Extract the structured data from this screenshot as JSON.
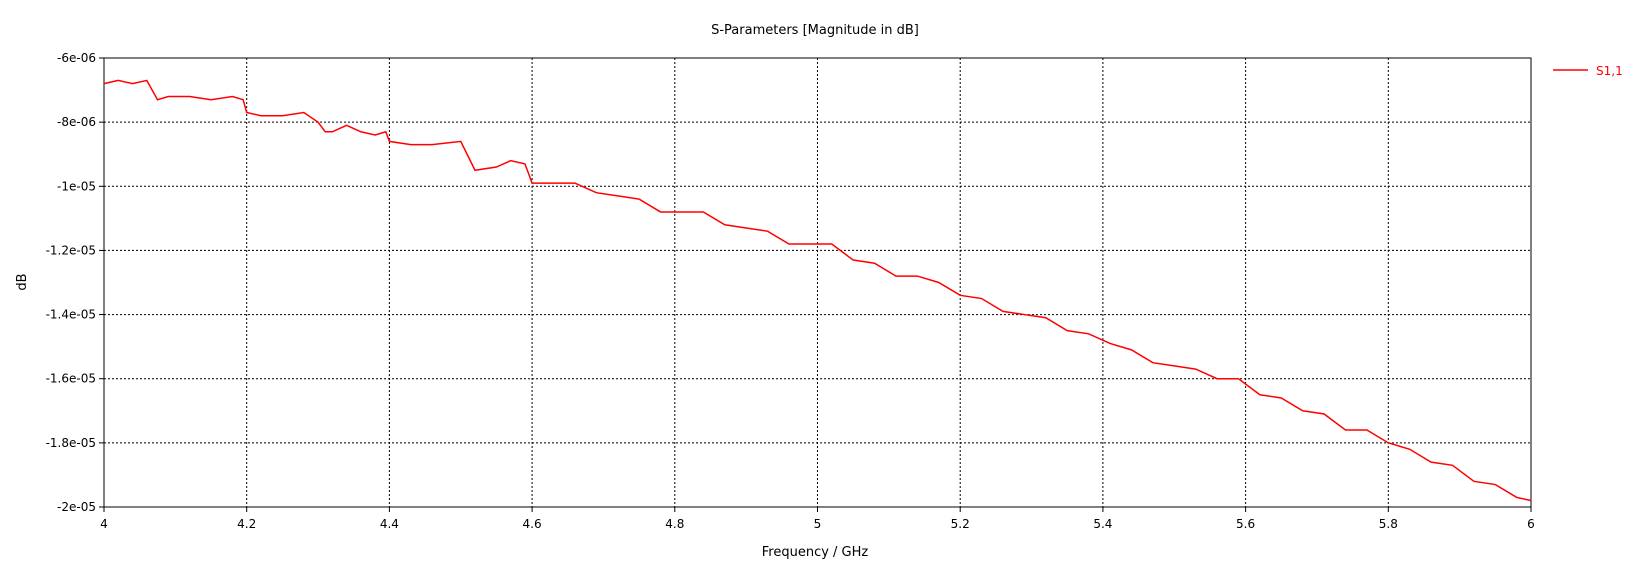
{
  "chart_data": {
    "type": "line",
    "title": "S-Parameters [Magnitude in dB]",
    "xlabel": "Frequency / GHz",
    "ylabel": "dB",
    "xlim": [
      4,
      6
    ],
    "ylim": [
      -2e-05,
      -6e-06
    ],
    "x_ticks": [
      4,
      4.2,
      4.4,
      4.6,
      4.8,
      5,
      5.2,
      5.4,
      5.6,
      5.8,
      6
    ],
    "x_tick_labels": [
      "4",
      "4.2",
      "4.4",
      "4.6",
      "4.8",
      "5",
      "5.2",
      "5.4",
      "5.6",
      "5.8",
      "6"
    ],
    "y_ticks": [
      -6e-06,
      -8e-06,
      -1e-05,
      -1.2e-05,
      -1.4e-05,
      -1.6e-05,
      -1.8e-05,
      -2e-05
    ],
    "y_tick_labels": [
      "-6e-06",
      "-8e-06",
      "-1e-05",
      "-1.2e-05",
      "-1.4e-05",
      "-1.6e-05",
      "-1.8e-05",
      "-2e-05"
    ],
    "grid": true,
    "legend_position": "right",
    "color": "#ff0000",
    "series": [
      {
        "name": "S1,1",
        "x": [
          4.0,
          4.02,
          4.04,
          4.06,
          4.075,
          4.09,
          4.12,
          4.15,
          4.18,
          4.195,
          4.2,
          4.22,
          4.25,
          4.28,
          4.3,
          4.31,
          4.32,
          4.34,
          4.36,
          4.38,
          4.395,
          4.4,
          4.43,
          4.46,
          4.5,
          4.52,
          4.55,
          4.57,
          4.59,
          4.6,
          4.63,
          4.66,
          4.69,
          4.72,
          4.75,
          4.78,
          4.81,
          4.84,
          4.87,
          4.9,
          4.93,
          4.96,
          4.99,
          5.02,
          5.05,
          5.08,
          5.11,
          5.14,
          5.17,
          5.2,
          5.23,
          5.26,
          5.29,
          5.32,
          5.35,
          5.38,
          5.41,
          5.44,
          5.47,
          5.5,
          5.53,
          5.56,
          5.59,
          5.62,
          5.65,
          5.68,
          5.71,
          5.74,
          5.77,
          5.8,
          5.83,
          5.86,
          5.89,
          5.92,
          5.95,
          5.98,
          6.0
        ],
        "y": [
          -6.8e-06,
          -6.7e-06,
          -6.8e-06,
          -6.7e-06,
          -7.3e-06,
          -7.2e-06,
          -7.2e-06,
          -7.3e-06,
          -7.2e-06,
          -7.3e-06,
          -7.7e-06,
          -7.8e-06,
          -7.8e-06,
          -7.7e-06,
          -8e-06,
          -8.3e-06,
          -8.3e-06,
          -8.1e-06,
          -8.3e-06,
          -8.4e-06,
          -8.3e-06,
          -8.6e-06,
          -8.7e-06,
          -8.7e-06,
          -8.6e-06,
          -9.5e-06,
          -9.4e-06,
          -9.2e-06,
          -9.3e-06,
          -9.9e-06,
          -9.9e-06,
          -9.9e-06,
          -1.02e-05,
          -1.03e-05,
          -1.04e-05,
          -1.08e-05,
          -1.08e-05,
          -1.08e-05,
          -1.12e-05,
          -1.13e-05,
          -1.14e-05,
          -1.18e-05,
          -1.18e-05,
          -1.18e-05,
          -1.23e-05,
          -1.24e-05,
          -1.28e-05,
          -1.28e-05,
          -1.3e-05,
          -1.34e-05,
          -1.35e-05,
          -1.39e-05,
          -1.4e-05,
          -1.41e-05,
          -1.45e-05,
          -1.46e-05,
          -1.49e-05,
          -1.51e-05,
          -1.55e-05,
          -1.56e-05,
          -1.57e-05,
          -1.6e-05,
          -1.6e-05,
          -1.65e-05,
          -1.66e-05,
          -1.7e-05,
          -1.71e-05,
          -1.76e-05,
          -1.76e-05,
          -1.8e-05,
          -1.82e-05,
          -1.86e-05,
          -1.87e-05,
          -1.92e-05,
          -1.93e-05,
          -1.97e-05,
          -1.98e-05
        ]
      }
    ]
  }
}
